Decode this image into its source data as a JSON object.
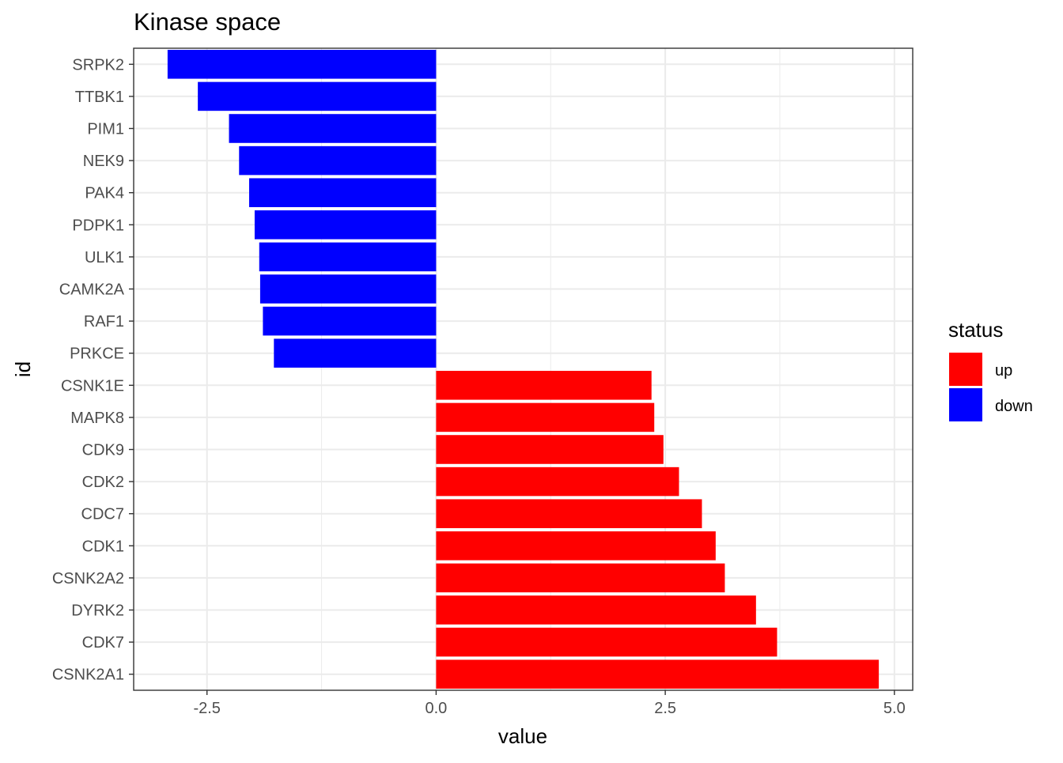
{
  "chart_data": {
    "type": "bar",
    "orientation": "horizontal",
    "title": "Kinase space",
    "xlabel": "value",
    "ylabel": "id",
    "xlim": [
      -3.3,
      5.2
    ],
    "xticks": [
      -2.5,
      0.0,
      2.5,
      5.0
    ],
    "xtick_labels": [
      "-2.5",
      "0.0",
      "2.5",
      "5.0"
    ],
    "grid": true,
    "legend": {
      "title": "status",
      "placement": "right",
      "entries": [
        {
          "label": "up",
          "color": "#ff0000"
        },
        {
          "label": "down",
          "color": "#0000ff"
        }
      ]
    },
    "categories": [
      "SRPK2",
      "TTBK1",
      "PIM1",
      "NEK9",
      "PAK4",
      "PDPK1",
      "ULK1",
      "CAMK2A",
      "RAF1",
      "PRKCE",
      "CSNK1E",
      "MAPK8",
      "CDK9",
      "CDK2",
      "CDC7",
      "CDK1",
      "CSNK2A2",
      "DYRK2",
      "CDK7",
      "CSNK2A1"
    ],
    "values": [
      -2.93,
      -2.6,
      -2.26,
      -2.15,
      -2.04,
      -1.98,
      -1.93,
      -1.92,
      -1.89,
      -1.77,
      2.35,
      2.38,
      2.48,
      2.65,
      2.9,
      3.05,
      3.15,
      3.49,
      3.72,
      4.83
    ],
    "status": [
      "down",
      "down",
      "down",
      "down",
      "down",
      "down",
      "down",
      "down",
      "down",
      "down",
      "up",
      "up",
      "up",
      "up",
      "up",
      "up",
      "up",
      "up",
      "up",
      "up"
    ]
  }
}
